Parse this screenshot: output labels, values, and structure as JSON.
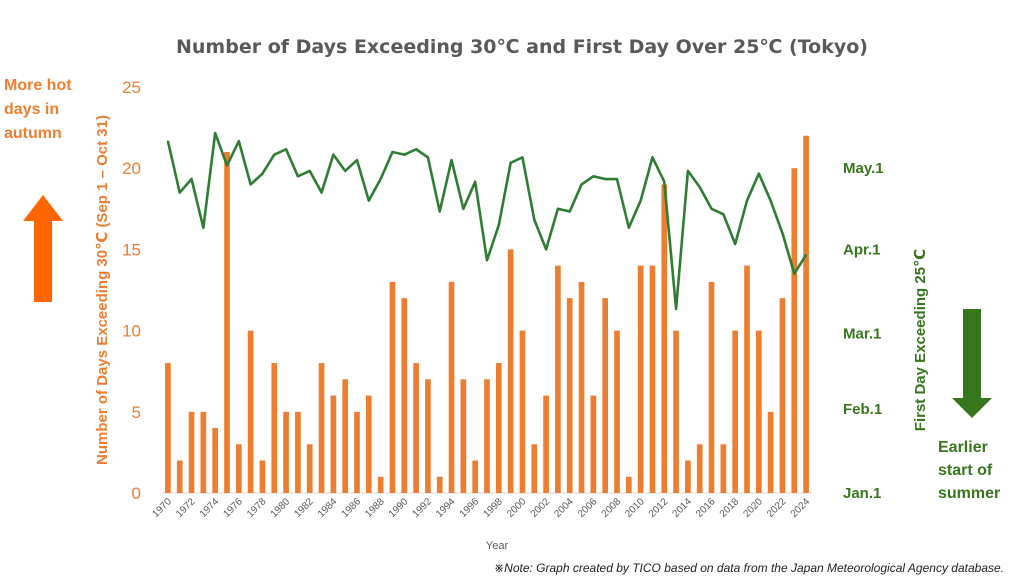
{
  "chart_data": {
    "type": "bar",
    "title": "Number of Days Exceeding 30℃ and First Day Over 25℃ (Tokyo)",
    "xlabel": "Year",
    "ylabel_left": "Number of Days Exceeding 30℃ (Sep 1 – Oct 31)",
    "ylabel_right": "First Day Exceeding  25℃",
    "ylim_left": [
      0,
      25
    ],
    "yticks_left": [
      "0",
      "5",
      "10",
      "15",
      "20",
      "25"
    ],
    "ylim_right_days": [
      0,
      150
    ],
    "yticks_right": [
      {
        "label": "Jan.1",
        "value": 0
      },
      {
        "label": "Feb.1",
        "value": 31
      },
      {
        "label": "Mar.1",
        "value": 59
      },
      {
        "label": "Apr.1",
        "value": 90
      },
      {
        "label": "May.1",
        "value": 120
      }
    ],
    "x": [
      1970,
      1971,
      1972,
      1973,
      1974,
      1975,
      1976,
      1977,
      1978,
      1979,
      1980,
      1981,
      1982,
      1983,
      1984,
      1985,
      1986,
      1987,
      1988,
      1989,
      1990,
      1991,
      1992,
      1993,
      1994,
      1995,
      1996,
      1997,
      1998,
      1999,
      2000,
      2001,
      2002,
      2003,
      2004,
      2005,
      2006,
      2007,
      2008,
      2009,
      2010,
      2011,
      2012,
      2013,
      2014,
      2015,
      2016,
      2017,
      2018,
      2019,
      2020,
      2021,
      2022,
      2023,
      2024
    ],
    "xticks": [
      "1970",
      "1972",
      "1974",
      "1976",
      "1978",
      "1980",
      "1982",
      "1984",
      "1986",
      "1988",
      "1990",
      "1992",
      "1994",
      "1996",
      "1998",
      "2000",
      "2002",
      "2004",
      "2006",
      "2008",
      "2010",
      "2012",
      "2014",
      "2016",
      "2018",
      "2020",
      "2022",
      "2024"
    ],
    "series": [
      {
        "type": "bar",
        "axis": "left",
        "values": [
          8,
          2,
          5,
          5,
          4,
          21,
          3,
          10,
          2,
          8,
          5,
          5,
          3,
          8,
          6,
          7,
          5,
          6,
          1,
          13,
          12,
          8,
          7,
          1,
          13,
          7,
          2,
          7,
          8,
          15,
          10,
          3,
          6,
          14,
          12,
          13,
          6,
          12,
          10,
          1,
          14,
          14,
          19,
          10,
          2,
          3,
          13,
          3,
          10,
          14,
          10,
          5,
          12,
          20,
          22
        ]
      },
      {
        "type": "line",
        "axis": "right",
        "values": [
          130,
          111,
          116,
          98,
          133,
          121,
          130,
          114,
          118,
          125,
          127,
          117,
          119,
          111,
          125,
          119,
          123,
          108,
          116,
          126,
          125,
          127,
          124,
          104,
          123,
          105,
          115,
          86,
          99,
          122,
          124,
          101,
          90,
          105,
          104,
          114,
          117,
          116,
          116,
          98,
          108,
          124,
          115,
          68,
          119,
          113,
          105,
          103,
          92,
          108,
          118,
          108,
          96,
          81,
          88
        ]
      }
    ],
    "annotations": {
      "left_text": [
        "More hot",
        "days in",
        "autumn"
      ],
      "right_text": [
        "Earlier",
        "start of",
        "summer"
      ]
    },
    "note": "※Note: Graph created by TICO based on data from the Japan Meteorological Agency database.",
    "colors": {
      "bar": "#ED7D31",
      "line": "#2E7D32",
      "up_arrow": "#FF6600",
      "down_arrow": "#38761D",
      "title": "#595959"
    }
  }
}
